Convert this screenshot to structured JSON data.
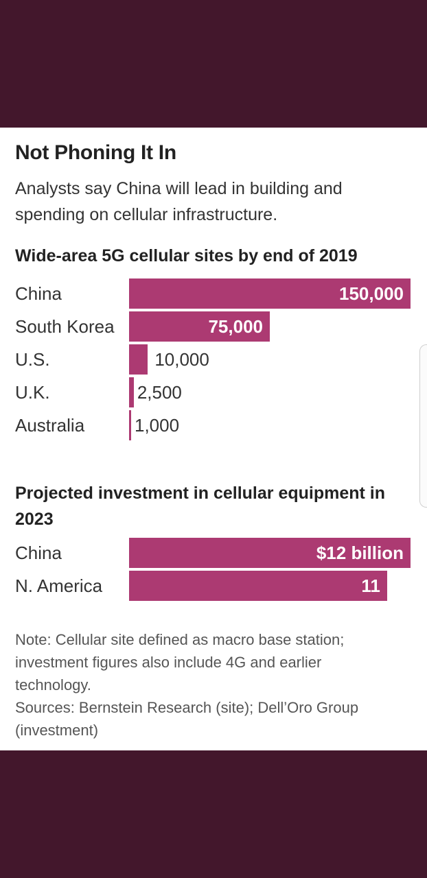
{
  "header": {
    "title": "Not Phoning It In",
    "subtitle": "Analysts say China will lead in building and spending on cellular infrastructure."
  },
  "chart_data": [
    {
      "type": "bar",
      "orientation": "horizontal",
      "title": "Wide-area 5G cellular sites by end of 2019",
      "categories": [
        "China",
        "South Korea",
        "U.S.",
        "U.K.",
        "Australia"
      ],
      "values": [
        150000,
        75000,
        10000,
        2500,
        1000
      ],
      "value_labels": [
        "150,000",
        "75,000",
        "10,000",
        "2,500",
        "1,000"
      ],
      "xlim": [
        0,
        150000
      ],
      "grid": false,
      "color": "#ac3a72"
    },
    {
      "type": "bar",
      "orientation": "horizontal",
      "title": "Projected investment in cellular equipment in 2023",
      "categories": [
        "China",
        "N. America"
      ],
      "values": [
        12,
        11
      ],
      "value_labels": [
        "$12 billion",
        "11"
      ],
      "xlim": [
        0,
        12
      ],
      "grid": false,
      "color": "#ac3a72"
    }
  ],
  "footer": {
    "note": "Note: Cellular site defined as macro base station; investment figures also include 4G and earlier technology.",
    "sources": "Sources: Bernstein Research (site); Dell’Oro Group (investment)"
  }
}
